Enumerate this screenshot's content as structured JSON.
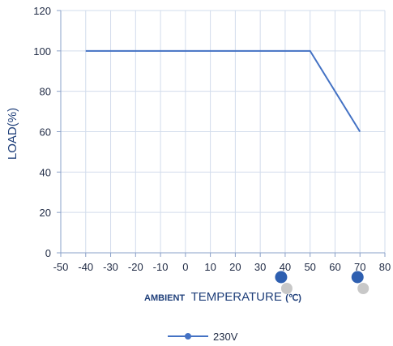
{
  "chart_data": {
    "type": "line",
    "xlabel_parts": [
      "AMBIENT",
      "TEMPERATURE",
      "(℃)"
    ],
    "ylabel": "LOAD(%)",
    "xlim": [
      -50,
      80
    ],
    "ylim": [
      0,
      120
    ],
    "xticks": [
      "-50",
      "-40",
      "-30",
      "-20",
      "-10",
      "0",
      "10",
      "20",
      "30",
      "40",
      "50",
      "60",
      "70",
      "80"
    ],
    "yticks": [
      "0",
      "20",
      "40",
      "60",
      "80",
      "100",
      "120"
    ],
    "grid": true,
    "legend_position": "bottom",
    "series": [
      {
        "name": "230V",
        "color": "#4472c4",
        "x": [
          -40,
          50,
          70
        ],
        "y": [
          100,
          100,
          60
        ]
      }
    ],
    "marker_dots": [
      {
        "x": 40,
        "color": "#2e5fb0"
      },
      {
        "x": 70,
        "color": "#2e5fb0"
      }
    ]
  }
}
